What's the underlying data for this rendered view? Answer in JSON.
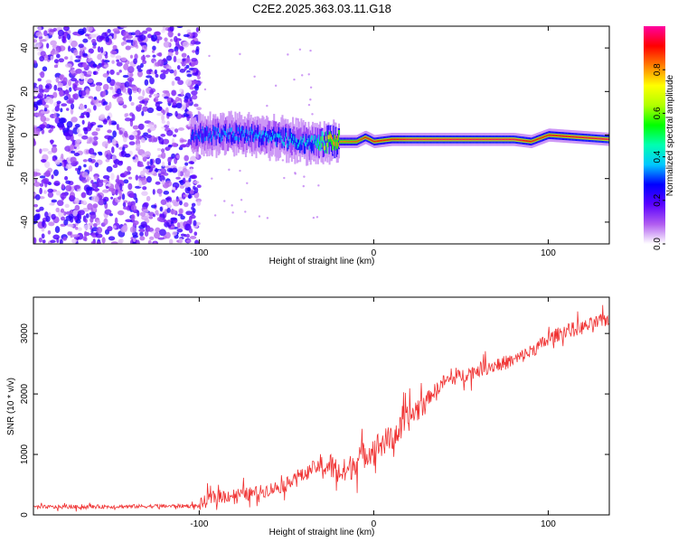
{
  "title": "C2E2.2025.363.03.11.G18",
  "chart_data": [
    {
      "type": "heatmap",
      "name": "spectrogram",
      "xlabel": "Height of straight line (km)",
      "ylabel": "Frequency (Hz)",
      "xlim": [
        -195,
        135
      ],
      "ylim": [
        -50,
        50
      ],
      "xticks": [
        -100,
        0,
        100
      ],
      "xtick_labels": [
        "-100",
        "0",
        "100"
      ],
      "yticks": [
        -40,
        -20,
        0,
        20,
        40
      ],
      "ytick_labels": [
        "-40",
        "-20",
        "0",
        "20",
        "40"
      ],
      "colorbar": {
        "label": "Normalized spectral amplitude",
        "range": [
          0,
          1
        ],
        "ticks": [
          0.0,
          0.2,
          0.4,
          0.6,
          0.8
        ],
        "tick_labels": [
          "0.0",
          "0.2",
          "0.4",
          "0.6",
          "0.8"
        ],
        "colors": [
          "#ffffff",
          "#b05cf0",
          "#5a00ff",
          "#0000ff",
          "#00c8ff",
          "#00ffb0",
          "#00ff00",
          "#b0ff00",
          "#ffff00",
          "#ff8000",
          "#ff0000",
          "#ff00a0"
        ]
      },
      "regions": {
        "noise_x_range": [
          -195,
          -100
        ],
        "noise_amplitude": [
          0.02,
          0.25
        ],
        "track_points": [
          {
            "x": -105,
            "freq": 0.0,
            "amp": 0.3
          },
          {
            "x": -90,
            "freq": 0.5,
            "amp": 0.35
          },
          {
            "x": -70,
            "freq": 0.0,
            "amp": 0.35
          },
          {
            "x": -50,
            "freq": -2.0,
            "amp": 0.4
          },
          {
            "x": -35,
            "freq": -4.0,
            "amp": 0.4
          },
          {
            "x": -25,
            "freq": -3.0,
            "amp": 0.8
          },
          {
            "x": -10,
            "freq": -3.0,
            "amp": 0.85
          },
          {
            "x": -5,
            "freq": -1.0,
            "amp": 0.9
          },
          {
            "x": 0,
            "freq": -3.0,
            "amp": 0.9
          },
          {
            "x": 10,
            "freq": -2.0,
            "amp": 0.9
          },
          {
            "x": 20,
            "freq": -2.0,
            "amp": 0.95
          },
          {
            "x": 60,
            "freq": -2.0,
            "amp": 0.95
          },
          {
            "x": 80,
            "freq": -2.0,
            "amp": 0.95
          },
          {
            "x": 90,
            "freq": -3.0,
            "amp": 0.9
          },
          {
            "x": 100,
            "freq": 0.0,
            "amp": 0.9
          },
          {
            "x": 135,
            "freq": -2.0,
            "amp": 0.95
          }
        ]
      }
    },
    {
      "type": "line",
      "name": "snr",
      "xlabel": "Height of straight line (km)",
      "ylabel": "SNR (10 * v/v)",
      "xlim": [
        -195,
        135
      ],
      "ylim": [
        0,
        3600
      ],
      "xticks": [
        -100,
        0,
        100
      ],
      "xtick_labels": [
        "-100",
        "0",
        "100"
      ],
      "yticks": [
        0,
        1000,
        2000,
        3000
      ],
      "ytick_labels": [
        "0",
        "1000",
        "2000",
        "3000"
      ],
      "color": "#f03232",
      "series": [
        {
          "name": "SNR",
          "x": [
            -195,
            -180,
            -160,
            -140,
            -120,
            -100,
            -95,
            -90,
            -80,
            -70,
            -60,
            -50,
            -45,
            -40,
            -35,
            -30,
            -25,
            -20,
            -15,
            -10,
            -5,
            0,
            5,
            10,
            15,
            20,
            25,
            30,
            35,
            40,
            50,
            60,
            70,
            80,
            90,
            100,
            110,
            120,
            130,
            135
          ],
          "y": [
            130,
            130,
            135,
            140,
            145,
            150,
            250,
            300,
            330,
            350,
            420,
            500,
            650,
            650,
            780,
            780,
            820,
            700,
            720,
            900,
            1000,
            1100,
            1200,
            1250,
            1400,
            1600,
            1750,
            1900,
            2050,
            2200,
            2300,
            2400,
            2480,
            2550,
            2700,
            2900,
            3050,
            3100,
            3200,
            3250
          ]
        }
      ]
    }
  ]
}
